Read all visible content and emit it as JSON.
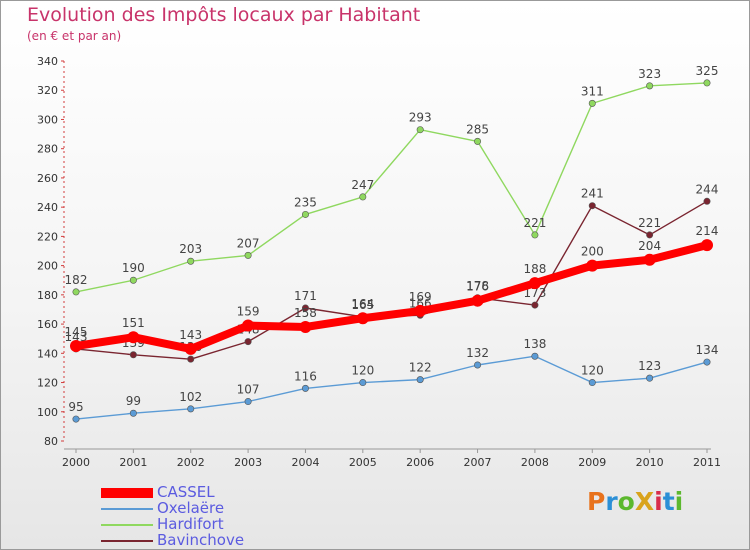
{
  "title": "Evolution des Impôts locaux par Habitant",
  "subtitle": "(en € et par an)",
  "logo": {
    "text": "ProXiti",
    "letter_colors": [
      "#e8721c",
      "#2b8fd6",
      "#5cb82e",
      "#d9a31c",
      "#d82c4a",
      "#2b8fd6",
      "#5cb82e"
    ]
  },
  "chart_data": {
    "type": "line",
    "x": [
      "2000",
      "2001",
      "2002",
      "2003",
      "2004",
      "2005",
      "2006",
      "2007",
      "2008",
      "2009",
      "2010",
      "2011"
    ],
    "y_ticks": [
      "80",
      "100",
      "120",
      "140",
      "160",
      "180",
      "200",
      "220",
      "240",
      "260",
      "280",
      "300",
      "320",
      "340"
    ],
    "ylim": [
      80,
      340
    ],
    "grid": false,
    "legend_position": "bottom-left",
    "series": [
      {
        "name": "CASSEL",
        "color": "#ff0000",
        "emphasis": true,
        "values": [
          145,
          151,
          143,
          159,
          158,
          164,
          169,
          176,
          188,
          200,
          204,
          214
        ],
        "labels": [
          "145",
          "151",
          "143",
          "159",
          "158",
          "164",
          "169",
          "176",
          "188",
          "200",
          "204",
          "214"
        ]
      },
      {
        "name": "Oxelaëre",
        "color": "#5b9bd5",
        "values": [
          95,
          99,
          102,
          107,
          116,
          120,
          122,
          132,
          138,
          120,
          123,
          134
        ],
        "labels": [
          "95",
          "99",
          "102",
          "107",
          "116",
          "120",
          "122",
          "132",
          "138",
          "120",
          "123",
          "134"
        ]
      },
      {
        "name": "Hardifort",
        "color": "#8fd85f",
        "values": [
          182,
          190,
          203,
          207,
          235,
          247,
          293,
          285,
          221,
          311,
          323,
          325
        ],
        "labels": [
          "182",
          "190",
          "203",
          "207",
          "235",
          "247",
          "293",
          "285",
          "221",
          "311",
          "323",
          "325"
        ]
      },
      {
        "name": "Bavinchove",
        "color": "#7a2530",
        "values": [
          143,
          139,
          136,
          148,
          171,
          165,
          166,
          178,
          173,
          241,
          221,
          244
        ],
        "labels": [
          "143",
          "139",
          "136",
          "148",
          "171",
          "165",
          "166",
          "178",
          "173",
          "241",
          "221",
          "244"
        ]
      }
    ]
  }
}
